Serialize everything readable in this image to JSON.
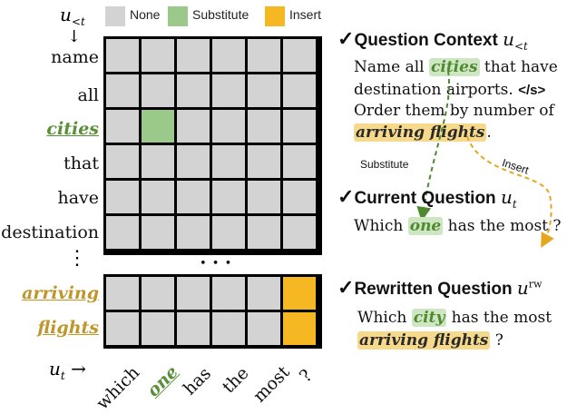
{
  "legend": {
    "context_symbol": "u",
    "context_sub": "<t",
    "arrow_down": "↓",
    "items": [
      {
        "label": "None",
        "color": "#d3d3d3"
      },
      {
        "label": "Substitute",
        "color": "#9bc98a"
      },
      {
        "label": "Insert",
        "color": "#f5b722"
      }
    ]
  },
  "matrix": {
    "row_labels_top": [
      "name",
      "all",
      "cities",
      "that",
      "have",
      "destination"
    ],
    "row_labels_bottom": [
      "arriving",
      "flights"
    ],
    "row_ellipsis": "⋮",
    "col_ellipsis": "• • •",
    "col_labels": [
      "which",
      "one",
      "has",
      "the",
      "most",
      "?"
    ],
    "x_axis_symbol": "u",
    "x_axis_sub": "t",
    "x_axis_arrow": "→",
    "top_cells": [
      [
        "none",
        "none",
        "none",
        "none",
        "none",
        "none"
      ],
      [
        "none",
        "none",
        "none",
        "none",
        "none",
        "none"
      ],
      [
        "none",
        "substitute",
        "none",
        "none",
        "none",
        "none"
      ],
      [
        "none",
        "none",
        "none",
        "none",
        "none",
        "none"
      ],
      [
        "none",
        "none",
        "none",
        "none",
        "none",
        "none"
      ],
      [
        "none",
        "none",
        "none",
        "none",
        "none",
        "none"
      ]
    ],
    "bottom_cells": [
      [
        "none",
        "none",
        "none",
        "none",
        "none",
        "insert"
      ],
      [
        "none",
        "none",
        "none",
        "none",
        "none",
        "insert"
      ]
    ]
  },
  "panel": {
    "check": "✓",
    "context": {
      "title": "Question Context",
      "symbol": "u",
      "sub": "<t",
      "line1_a": "Name all ",
      "line1_hl": "cities",
      "line1_b": " that have",
      "line2_a": "destination airports. ",
      "line2_tok": "</s>",
      "line3": "Order them by number of",
      "line4_hl": "arriving flights",
      "line4_b": "."
    },
    "arrow_substitute": "Substitute",
    "arrow_insert": "Insert",
    "current": {
      "title": "Current Question",
      "symbol": "u",
      "sub": "t",
      "line_a": "Which ",
      "line_hl": "one",
      "line_b": " has the most ?"
    },
    "rewritten": {
      "title": "Rewritten Question",
      "symbol": "u",
      "sup": "rw",
      "line1_a": "Which ",
      "line1_hl": "city",
      "line1_b": " has the most",
      "line2_hl": "arriving flights",
      "line2_b": " ?"
    }
  }
}
